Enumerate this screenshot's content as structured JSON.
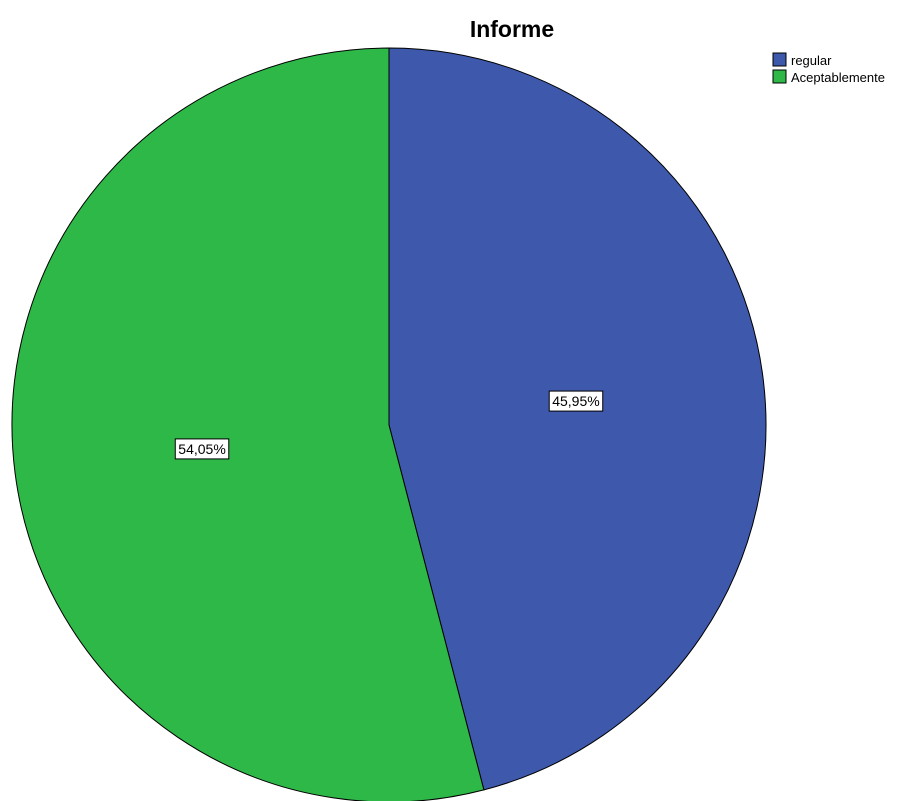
{
  "chart_data": {
    "type": "pie",
    "title": "Informe",
    "categories": [
      "regular",
      "Aceptablemente"
    ],
    "values": [
      45.95,
      54.05
    ],
    "data_labels": [
      "45,95%",
      "54,05%"
    ],
    "colors": [
      "#3E58AC",
      "#2EB848"
    ],
    "start_angle": "12 o'clock",
    "direction": "clockwise",
    "legend": {
      "placement": "top-right",
      "entries": [
        "regular",
        "Aceptablemente"
      ]
    }
  }
}
